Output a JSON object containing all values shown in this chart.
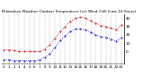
{
  "title": "Milwaukee Weather Outdoor Temperature (vs) Wind Chill (Last 24 Hours)",
  "temp_color": "#cc0000",
  "wind_color": "#0000cc",
  "background": "#ffffff",
  "plot_bg": "#ffffff",
  "grid_color": "#888888",
  "ylim": [
    -15,
    45
  ],
  "yticks": [
    0,
    10,
    20,
    30,
    40
  ],
  "temp_x": [
    0,
    1,
    2,
    3,
    4,
    5,
    6,
    7,
    8,
    9,
    10,
    11,
    12,
    13,
    14,
    15,
    16,
    17,
    18,
    19,
    20,
    21,
    22,
    23
  ],
  "temp_y": [
    2,
    2,
    1,
    0,
    0,
    0,
    0,
    0,
    3,
    8,
    16,
    24,
    30,
    36,
    40,
    41,
    40,
    37,
    34,
    31,
    30,
    28,
    26,
    32
  ],
  "wind_x": [
    0,
    1,
    2,
    3,
    4,
    5,
    6,
    7,
    8,
    9,
    10,
    11,
    12,
    13,
    14,
    15,
    16,
    17,
    18,
    19,
    20,
    21,
    22,
    23
  ],
  "wind_y": [
    -10,
    -10,
    -11,
    -11,
    -11,
    -11,
    -11,
    -10,
    -7,
    -3,
    5,
    13,
    19,
    24,
    27,
    27,
    26,
    23,
    20,
    18,
    17,
    15,
    12,
    17
  ],
  "xlabel_fontsize": 3,
  "ylabel_fontsize": 3,
  "title_fontsize": 3.0,
  "linewidth": 0.6,
  "markersize": 0.8,
  "grid_linewidth": 0.3
}
